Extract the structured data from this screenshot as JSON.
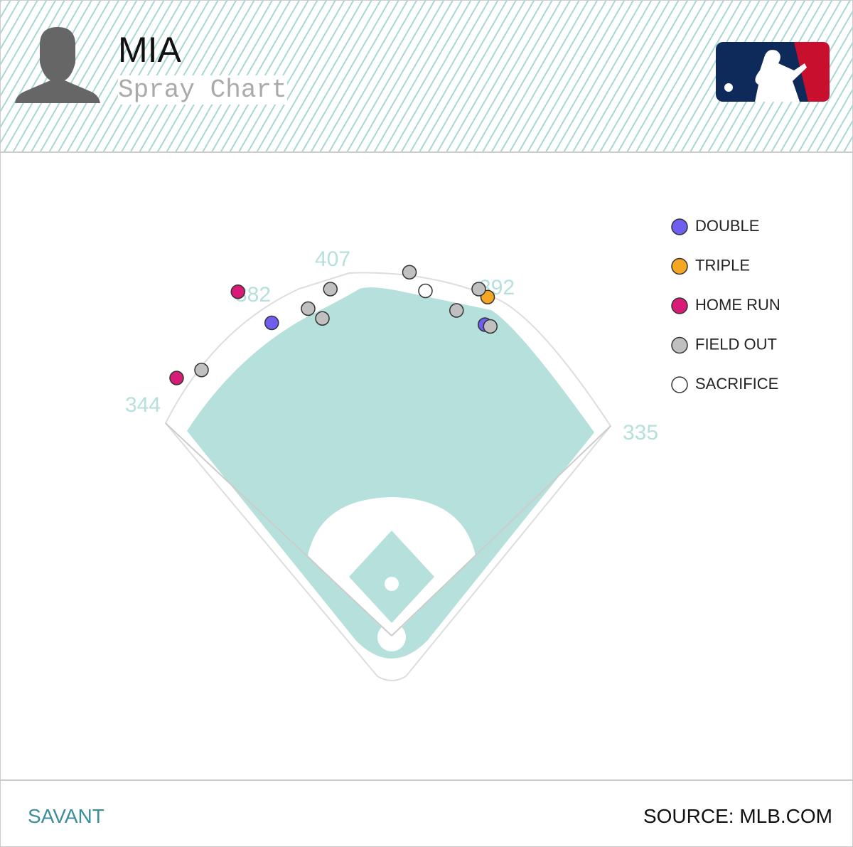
{
  "header": {
    "title": "MIA",
    "subtitle": "Spray Chart"
  },
  "footer": {
    "left": "SAVANT",
    "right": "SOURCE: MLB.COM"
  },
  "chart_data": {
    "type": "spray",
    "wall_distances": [
      344,
      382,
      407,
      392,
      335
    ],
    "series": [
      {
        "name": "DOUBLE",
        "color": "#6f5ff0",
        "x": [
          -135,
          105
        ],
        "y": [
          352,
          350
        ]
      },
      {
        "name": "TRIPLE",
        "color": "#f5a623",
        "x": [
          108
        ],
        "y": [
          381
        ]
      },
      {
        "name": "HOME RUN",
        "color": "#d81b76",
        "x": [
          -173,
          -242
        ],
        "y": [
          387,
          290
        ]
      },
      {
        "name": "FIELD OUT",
        "color": "#c0c0c0",
        "x": [
          -214,
          -69,
          -94,
          -78,
          20,
          98,
          73,
          111
        ],
        "y": [
          299,
          390,
          368,
          357,
          409,
          390,
          366,
          348
        ]
      },
      {
        "name": "SACRIFICE",
        "color": "#ffffff",
        "x": [
          38
        ],
        "y": [
          388
        ]
      }
    ]
  }
}
